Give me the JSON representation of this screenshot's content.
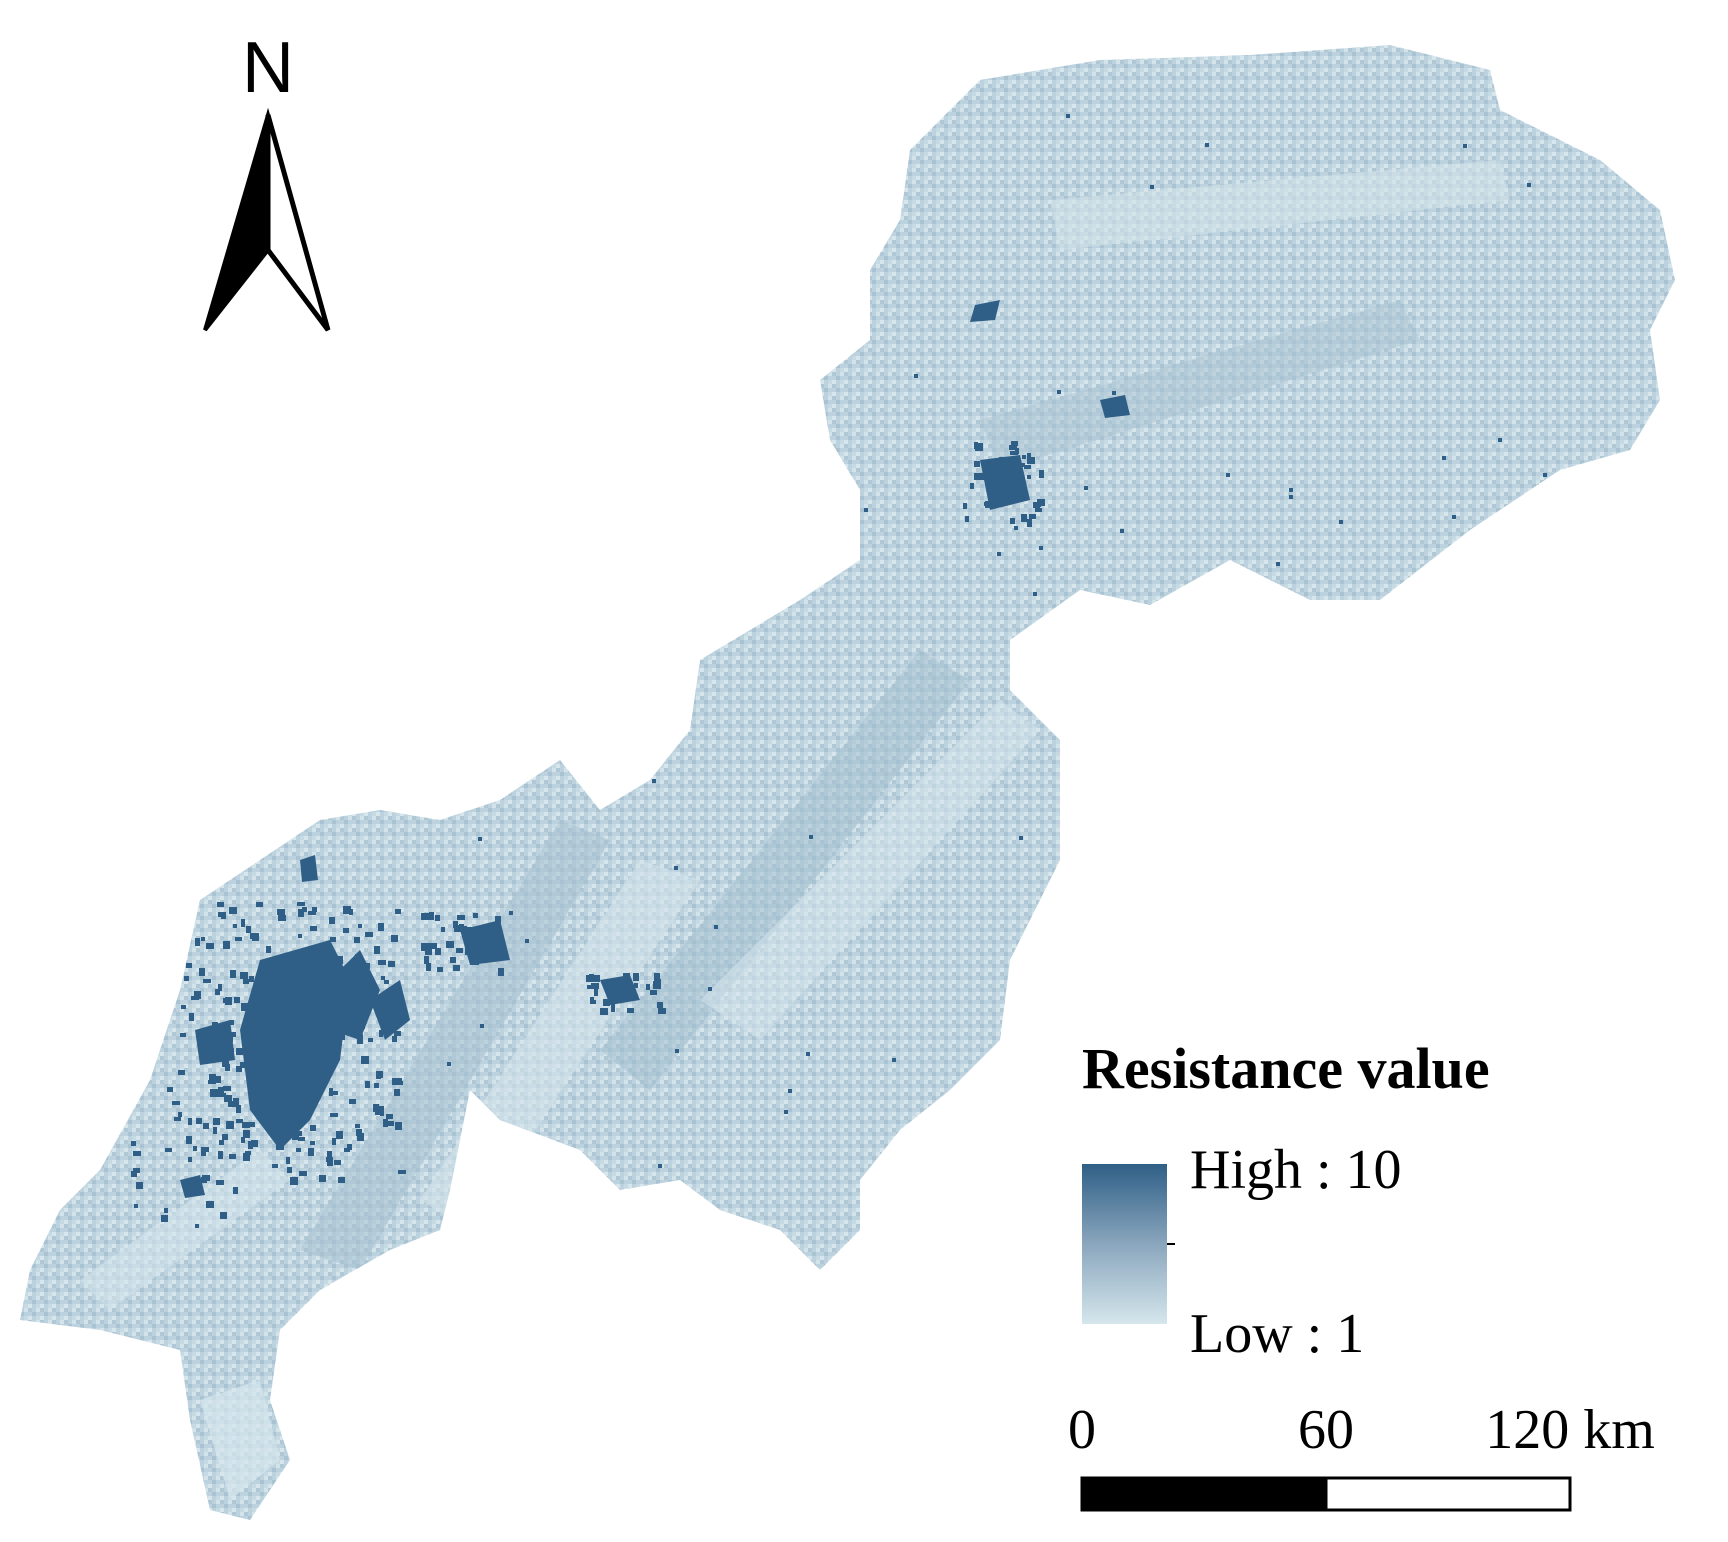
{
  "north_arrow": {
    "label": "N"
  },
  "legend": {
    "title": "Resistance value",
    "high_label": "High : 10",
    "low_label": "Low : 1",
    "high_color": "#2f5f86",
    "mid_color": "#8aa6bd",
    "low_color": "#d5e6ec"
  },
  "scale_bar": {
    "ticks": [
      "0",
      "60",
      "120 km"
    ]
  },
  "colors": {
    "region_base": "#b9d0dc",
    "region_light": "#d3e3ea",
    "region_mid": "#9fbacb",
    "urban_high": "#2f5f86"
  }
}
